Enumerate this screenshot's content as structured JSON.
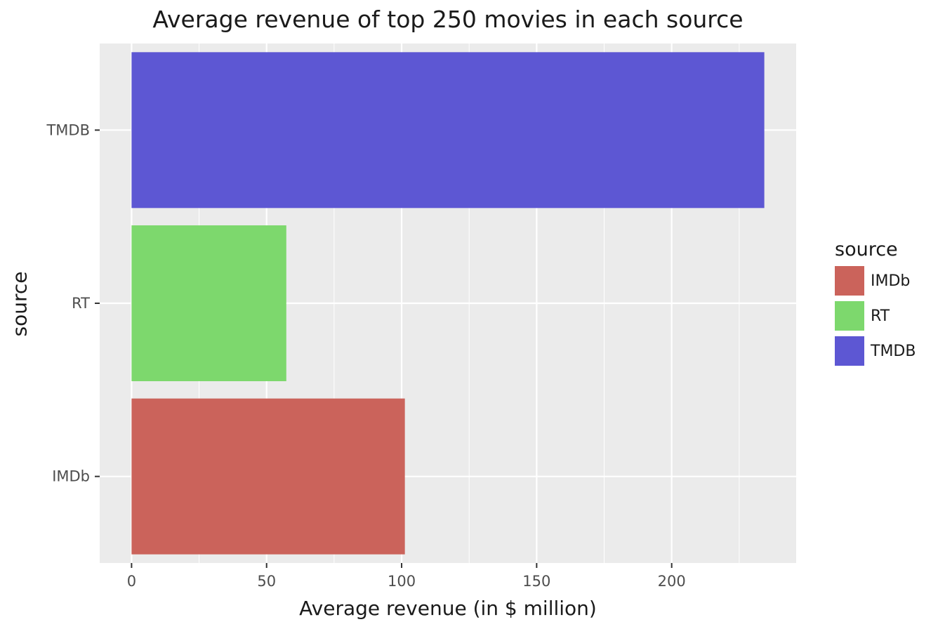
{
  "chart_data": {
    "type": "bar",
    "orientation": "horizontal",
    "title": "Average revenue of top 250 movies in each source",
    "xlabel": "Average revenue (in $ million)",
    "ylabel": "source",
    "categories": [
      "IMDb",
      "RT",
      "TMDB"
    ],
    "values": [
      101.2,
      57.3,
      234.3
    ],
    "colors": [
      "#CB635B",
      "#7DD86D",
      "#5D57D3"
    ],
    "xlim": [
      -11.8,
      246.1
    ],
    "xticks": [
      0,
      50,
      100,
      150,
      200
    ],
    "xtick_labels": [
      "0",
      "50",
      "100",
      "150",
      "200"
    ],
    "grid": true,
    "panel_background": "#EBEBEB",
    "legend": {
      "title": "source",
      "placement": "right",
      "entries": [
        {
          "label": "IMDb",
          "color": "#CB635B"
        },
        {
          "label": "RT",
          "color": "#7DD86D"
        },
        {
          "label": "TMDB",
          "color": "#5D57D3"
        }
      ]
    }
  }
}
